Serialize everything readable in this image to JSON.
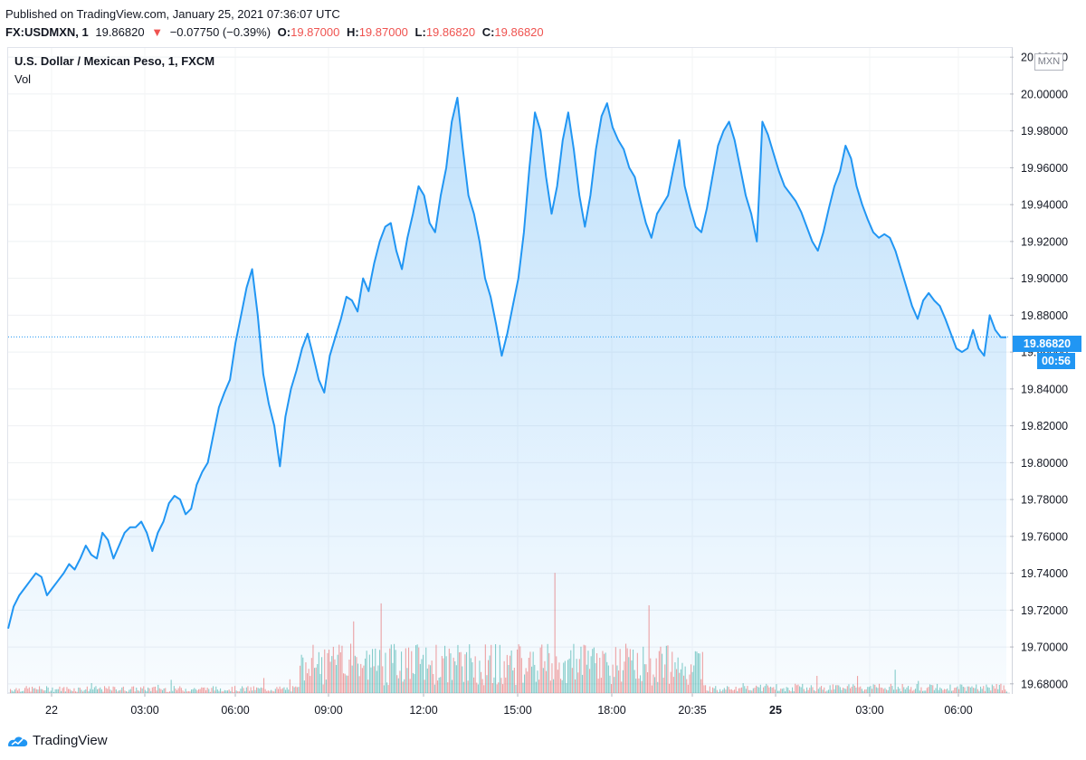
{
  "header": {
    "published": "Published on TradingView.com, January 25, 2021 07:36:07 UTC",
    "symbol": "FX:USDMXN, 1",
    "last": "19.86820",
    "change": "−0.07750 (−0.39%)",
    "open_label": "O:",
    "open": "19.87000",
    "high_label": "H:",
    "high": "19.87000",
    "low_label": "L:",
    "low": "19.86820",
    "close_label": "C:",
    "close": "19.86820"
  },
  "legend": {
    "name": "U.S. Dollar / Mexican Peso, 1, FXCM",
    "vol": "Vol"
  },
  "axis": {
    "currency": "MXN",
    "price_tag": "19.86820",
    "timer": "00:56"
  },
  "footer": {
    "brand": "TradingView"
  },
  "colors": {
    "line": "#2196f3",
    "up": "#26a69a",
    "down": "#ef5350",
    "change": "#ef5350"
  },
  "chart_data": {
    "type": "area",
    "title": "U.S. Dollar / Mexican Peso, 1, FXCM",
    "x_tick_labels": [
      "22",
      "03:00",
      "06:00",
      "09:00",
      "12:00",
      "15:00",
      "18:00",
      "20:35",
      "25",
      "03:00",
      "06:00"
    ],
    "y_tick_labels": [
      "20.02000",
      "20.00000",
      "19.98000",
      "19.96000",
      "19.94000",
      "19.92000",
      "19.90000",
      "19.88000",
      "19.86000",
      "19.84000",
      "19.82000",
      "19.80000",
      "19.78000",
      "19.76000",
      "19.74000",
      "19.72000",
      "19.70000",
      "19.68000"
    ],
    "ylim": [
      19.675,
      20.025
    ],
    "last_price": 19.8682,
    "series": [
      {
        "values": [
          19.71,
          19.722,
          19.728,
          19.732,
          19.736,
          19.74,
          19.738,
          19.728,
          19.732,
          19.736,
          19.74,
          19.745,
          19.742,
          19.748,
          19.755,
          19.75,
          19.748,
          19.762,
          19.758,
          19.748,
          19.755,
          19.762,
          19.765,
          19.765,
          19.768,
          19.762,
          19.752,
          19.762,
          19.768,
          19.778,
          19.782,
          19.78,
          19.772,
          19.775,
          19.788,
          19.795,
          19.8,
          19.815,
          19.83,
          19.838,
          19.845,
          19.865,
          19.88,
          19.895,
          19.905,
          19.88,
          19.848,
          19.832,
          19.82,
          19.798,
          19.825,
          19.84,
          19.85,
          19.862,
          19.87,
          19.858,
          19.845,
          19.838,
          19.858,
          19.868,
          19.878,
          19.89,
          19.888,
          19.882,
          19.9,
          19.893,
          19.908,
          19.92,
          19.928,
          19.93,
          19.915,
          19.905,
          19.922,
          19.935,
          19.95,
          19.945,
          19.93,
          19.925,
          19.945,
          19.96,
          19.985,
          19.998,
          19.97,
          19.945,
          19.935,
          19.92,
          19.9,
          19.89,
          19.875,
          19.858,
          19.87,
          19.885,
          19.9,
          19.925,
          19.96,
          19.99,
          19.98,
          19.955,
          19.935,
          19.95,
          19.975,
          19.99,
          19.97,
          19.945,
          19.928,
          19.945,
          19.97,
          19.988,
          19.995,
          19.982,
          19.975,
          19.97,
          19.96,
          19.955,
          19.942,
          19.93,
          19.922,
          19.935,
          19.94,
          19.945,
          19.96,
          19.975,
          19.95,
          19.938,
          19.928,
          19.925,
          19.938,
          19.955,
          19.972,
          19.98,
          19.985,
          19.975,
          19.96,
          19.945,
          19.935,
          19.92,
          19.985,
          19.978,
          19.968,
          19.958,
          19.95,
          19.946,
          19.942,
          19.936,
          19.928,
          19.92,
          19.915,
          19.925,
          19.938,
          19.95,
          19.958,
          19.972,
          19.965,
          19.95,
          19.94,
          19.932,
          19.925,
          19.922,
          19.924,
          19.922,
          19.915,
          19.905,
          19.895,
          19.885,
          19.878,
          19.888,
          19.892,
          19.888,
          19.885,
          19.878,
          19.87,
          19.862,
          19.86,
          19.862,
          19.872,
          19.862,
          19.858,
          19.88,
          19.872,
          19.868,
          19.868
        ]
      }
    ],
    "volume": {
      "note": "per-minute volume bars, green = up bar, red = down bar",
      "segments": [
        {
          "from_time": "22 00:00",
          "to_time": "22 08:00",
          "level": "low"
        },
        {
          "from_time": "22 08:00",
          "to_time": "22 20:35",
          "level": "high"
        },
        {
          "from_time": "25 00:00",
          "to_time": "25 07:36",
          "level": "low"
        }
      ]
    }
  }
}
